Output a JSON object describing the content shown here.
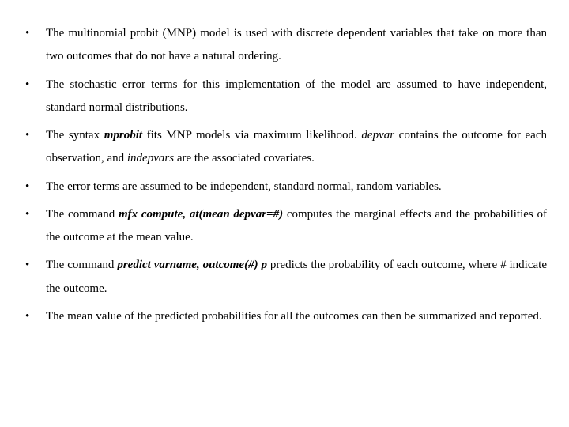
{
  "font": {
    "family": "Times New Roman",
    "size_pt": 15,
    "line_height": 1.95,
    "color": "#000000"
  },
  "background_color": "#ffffff",
  "bullets": [
    {
      "runs": [
        {
          "t": "The multinomial probit (MNP) model is used with discrete dependent variables that take on more than two outcomes that do not have a natural ordering."
        }
      ]
    },
    {
      "runs": [
        {
          "t": "The stochastic error terms for this implementation of the model are assumed to have independent, standard normal distributions."
        }
      ]
    },
    {
      "runs": [
        {
          "t": "The syntax "
        },
        {
          "t": "mprobit",
          "style": "bi"
        },
        {
          "t": " fits MNP models via maximum likelihood. "
        },
        {
          "t": "depvar",
          "style": "it"
        },
        {
          "t": " contains the outcome for each observation, and "
        },
        {
          "t": "indepvars",
          "style": "it"
        },
        {
          "t": " are the associated covariates."
        }
      ]
    },
    {
      "runs": [
        {
          "t": "The error terms  are assumed to be independent, standard normal, random variables."
        }
      ]
    },
    {
      "runs": [
        {
          "t": "The command "
        },
        {
          "t": "mfx compute, at(mean depvar=#)",
          "style": "bi"
        },
        {
          "t": " computes the marginal effects and the probabilities of the outcome at the mean value."
        }
      ]
    },
    {
      "runs": [
        {
          "t": "The command "
        },
        {
          "t": "predict varname, outcome(#) p",
          "style": "bi"
        },
        {
          "t": " predicts the probability of each outcome, where # indicate the outcome."
        }
      ]
    },
    {
      "runs": [
        {
          "t": "The mean value of the predicted probabilities for all the outcomes can then be summarized and reported."
        }
      ]
    }
  ]
}
